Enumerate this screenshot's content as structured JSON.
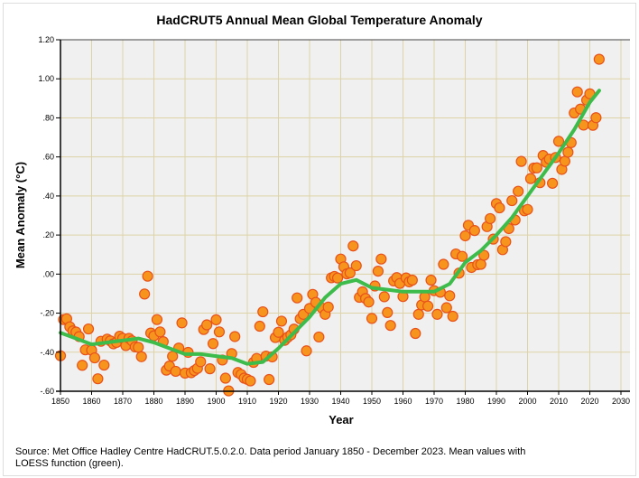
{
  "chart_data": {
    "type": "scatter",
    "title": "HadCRUT5 Annual Mean Global Temperature Anomaly",
    "xlabel": "Year",
    "ylabel": "Mean Anomaly (°C)",
    "xlim": [
      1850,
      2030
    ],
    "ylim": [
      -0.6,
      1.2
    ],
    "grid": true,
    "x_ticks": [
      "1850",
      "1860",
      "1870",
      "1880",
      "1890",
      "1900",
      "1910",
      "1920",
      "1930",
      "1940",
      "1950",
      "1960",
      "1970",
      "1980",
      "1990",
      "2000",
      "2010",
      "2020",
      "2030"
    ],
    "y_ticks": [
      {
        "v": 1.2,
        "label": "1.20"
      },
      {
        "v": 1.0,
        "label": "1.00"
      },
      {
        "v": 0.8,
        "label": ".80"
      },
      {
        "v": 0.6,
        "label": ".60"
      },
      {
        "v": 0.4,
        "label": ".40"
      },
      {
        "v": 0.2,
        "label": ".20"
      },
      {
        "v": 0.0,
        "label": ".00"
      },
      {
        "v": -0.2,
        "label": "-.20"
      },
      {
        "v": -0.4,
        "label": "-.40"
      },
      {
        "v": -0.6,
        "label": "-.60"
      }
    ],
    "series": [
      {
        "name": "Annual mean",
        "type": "scatter",
        "color": "#f7941d",
        "x_start": 1850,
        "values": [
          -0.418,
          -0.233,
          -0.229,
          -0.27,
          -0.291,
          -0.297,
          -0.32,
          -0.467,
          -0.388,
          -0.281,
          -0.39,
          -0.429,
          -0.536,
          -0.344,
          -0.466,
          -0.333,
          -0.342,
          -0.357,
          -0.35,
          -0.318,
          -0.329,
          -0.366,
          -0.329,
          -0.342,
          -0.373,
          -0.375,
          -0.423,
          -0.102,
          -0.011,
          -0.302,
          -0.316,
          -0.233,
          -0.296,
          -0.346,
          -0.492,
          -0.471,
          -0.421,
          -0.498,
          -0.379,
          -0.25,
          -0.507,
          -0.401,
          -0.505,
          -0.494,
          -0.483,
          -0.449,
          -0.284,
          -0.26,
          -0.485,
          -0.356,
          -0.234,
          -0.296,
          -0.44,
          -0.533,
          -0.598,
          -0.407,
          -0.32,
          -0.504,
          -0.514,
          -0.533,
          -0.539,
          -0.547,
          -0.452,
          -0.432,
          -0.267,
          -0.193,
          -0.42,
          -0.54,
          -0.424,
          -0.325,
          -0.298,
          -0.241,
          -0.339,
          -0.323,
          -0.311,
          -0.282,
          -0.122,
          -0.229,
          -0.206,
          -0.393,
          -0.176,
          -0.104,
          -0.145,
          -0.322,
          -0.174,
          -0.206,
          -0.169,
          -0.019,
          -0.012,
          -0.02,
          0.077,
          0.037,
          0.001,
          0.006,
          0.144,
          0.043,
          -0.119,
          -0.091,
          -0.125,
          -0.143,
          -0.227,
          -0.061,
          0.015,
          0.077,
          -0.116,
          -0.197,
          -0.263,
          -0.035,
          -0.018,
          -0.048,
          -0.115,
          -0.02,
          -0.04,
          -0.031,
          -0.304,
          -0.206,
          -0.158,
          -0.117,
          -0.164,
          -0.031,
          -0.085,
          -0.206,
          -0.093,
          0.05,
          -0.172,
          -0.111,
          -0.216,
          0.103,
          0.005,
          0.091,
          0.196,
          0.25,
          0.034,
          0.223,
          0.048,
          0.05,
          0.096,
          0.243,
          0.284,
          0.179,
          0.361,
          0.339,
          0.125,
          0.166,
          0.233,
          0.376,
          0.277,
          0.424,
          0.577,
          0.324,
          0.331,
          0.489,
          0.543,
          0.544,
          0.468,
          0.607,
          0.573,
          0.589,
          0.465,
          0.597,
          0.68,
          0.536,
          0.578,
          0.624,
          0.673,
          0.825,
          0.933,
          0.845,
          0.763,
          0.891,
          0.923,
          0.762,
          0.801,
          1.1
        ]
      },
      {
        "name": "LOESS",
        "type": "line",
        "color": "#3dbb4b",
        "x": [
          1850,
          1855,
          1860,
          1865,
          1870,
          1875,
          1880,
          1885,
          1890,
          1895,
          1900,
          1905,
          1910,
          1915,
          1920,
          1925,
          1930,
          1935,
          1940,
          1945,
          1950,
          1955,
          1960,
          1965,
          1970,
          1975,
          1980,
          1985,
          1990,
          1995,
          2000,
          2005,
          2010,
          2015,
          2020,
          2023
        ],
        "y": [
          -0.3,
          -0.33,
          -0.36,
          -0.35,
          -0.34,
          -0.33,
          -0.35,
          -0.38,
          -0.41,
          -0.41,
          -0.42,
          -0.43,
          -0.46,
          -0.45,
          -0.38,
          -0.3,
          -0.22,
          -0.12,
          -0.05,
          -0.03,
          -0.07,
          -0.08,
          -0.09,
          -0.09,
          -0.09,
          -0.05,
          0.06,
          0.12,
          0.2,
          0.29,
          0.4,
          0.51,
          0.62,
          0.74,
          0.88,
          0.94
        ]
      }
    ]
  },
  "footer": {
    "source": "Source: Met Office Hadley Centre HadCRUT.5.0.2.0. Data period January 1850 - December 2023. Mean values with LOESS function (green)."
  }
}
